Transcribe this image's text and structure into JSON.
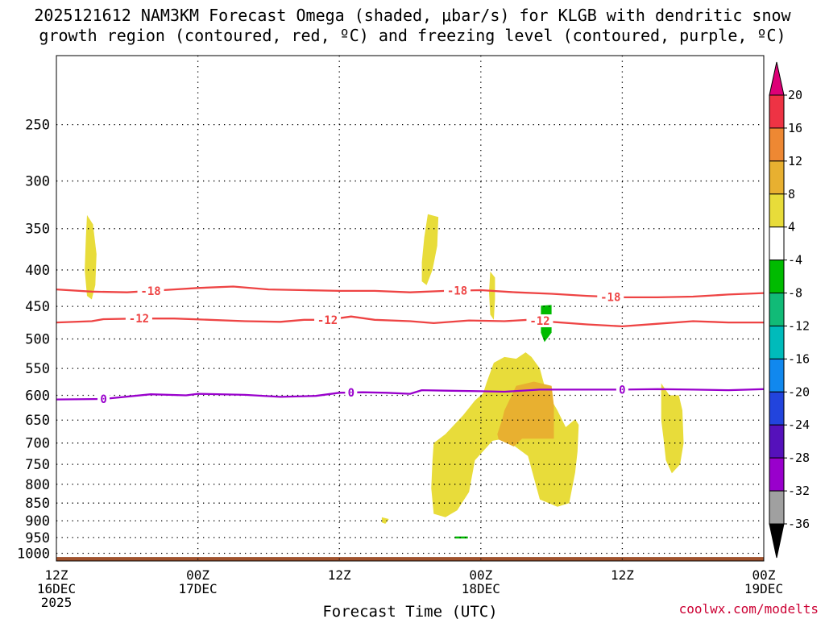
{
  "chart_data": {
    "type": "heatmap",
    "title_line1": "2025121612 NAM3KM Forecast Omega (shaded, μbar/s) for KLGB with dendritic snow",
    "title_line2": "growth region (contoured, red, ºC) and freezing level (contoured, purple, ºC)",
    "xlabel": "Forecast Time (UTC)",
    "credit": "coolwx.com/modelts",
    "x_range_hours": [
      0,
      60
    ],
    "y_range_hpa": [
      1025,
      200
    ],
    "y_scale": "log-pressure",
    "x_ticks": [
      {
        "hour": 0,
        "line1": "12Z",
        "line2": "16DEC",
        "line3": "2025"
      },
      {
        "hour": 12,
        "line1": "00Z",
        "line2": "17DEC",
        "line3": ""
      },
      {
        "hour": 24,
        "line1": "12Z",
        "line2": "",
        "line3": ""
      },
      {
        "hour": 36,
        "line1": "00Z",
        "line2": "18DEC",
        "line3": ""
      },
      {
        "hour": 48,
        "line1": "12Z",
        "line2": "",
        "line3": ""
      },
      {
        "hour": 60,
        "line1": "00Z",
        "line2": "19DEC",
        "line3": ""
      }
    ],
    "y_ticks": [
      1000,
      950,
      900,
      850,
      800,
      750,
      700,
      650,
      600,
      550,
      500,
      450,
      400,
      350,
      300,
      250
    ],
    "colorbar": {
      "labels": [
        20,
        16,
        12,
        8,
        4,
        -4,
        -8,
        -12,
        -16,
        -20,
        -24,
        -28,
        -32,
        -36
      ],
      "colors": [
        "#dd0077",
        "#ee3344",
        "#ee8833",
        "#e8b030",
        "#e8dc3a",
        "#ffffff",
        "#00bb00",
        "#11bb77",
        "#00bbbb",
        "#1188ee",
        "#2244dd",
        "#5511bb",
        "#9900cc",
        "#a0a0a0",
        "#000000"
      ]
    },
    "contours": [
      {
        "label": "-18",
        "color": "#ee4444",
        "label_hours": [
          8,
          34,
          47
        ],
        "points": [
          [
            0,
            426
          ],
          [
            3,
            429
          ],
          [
            6,
            430
          ],
          [
            9,
            427
          ],
          [
            12,
            424
          ],
          [
            15,
            422
          ],
          [
            18,
            426
          ],
          [
            21,
            427
          ],
          [
            24,
            428
          ],
          [
            27,
            428
          ],
          [
            30,
            430
          ],
          [
            33,
            428
          ],
          [
            36,
            427
          ],
          [
            39,
            430
          ],
          [
            42,
            432
          ],
          [
            45,
            435
          ],
          [
            48,
            437
          ],
          [
            51,
            437
          ],
          [
            54,
            436
          ],
          [
            57,
            433
          ],
          [
            60,
            431
          ]
        ]
      },
      {
        "label": "-12",
        "color": "#ee4444",
        "label_hours": [
          7,
          23,
          41
        ],
        "points": [
          [
            0,
            474
          ],
          [
            3,
            472
          ],
          [
            4,
            469
          ],
          [
            7,
            468
          ],
          [
            10,
            468
          ],
          [
            13,
            470
          ],
          [
            16,
            472
          ],
          [
            19,
            473
          ],
          [
            21,
            470
          ],
          [
            23,
            470
          ],
          [
            25,
            465
          ],
          [
            27,
            470
          ],
          [
            30,
            472
          ],
          [
            32,
            475
          ],
          [
            35,
            471
          ],
          [
            38,
            472
          ],
          [
            40,
            470
          ],
          [
            42,
            473
          ],
          [
            45,
            477
          ],
          [
            48,
            480
          ],
          [
            51,
            476
          ],
          [
            54,
            472
          ],
          [
            57,
            474
          ],
          [
            60,
            474
          ]
        ]
      },
      {
        "label": "0",
        "color": "#9900cc",
        "label_hours": [
          4,
          25,
          48
        ],
        "points": [
          [
            0,
            608
          ],
          [
            4,
            607
          ],
          [
            8,
            598
          ],
          [
            11,
            600
          ],
          [
            12,
            597
          ],
          [
            16,
            599
          ],
          [
            19,
            603
          ],
          [
            22,
            601
          ],
          [
            24,
            595
          ],
          [
            26,
            594
          ],
          [
            28,
            595
          ],
          [
            30,
            597
          ],
          [
            31,
            590
          ],
          [
            33,
            591
          ],
          [
            36,
            592
          ],
          [
            38,
            593
          ],
          [
            41,
            589
          ],
          [
            43,
            589
          ],
          [
            45,
            589
          ],
          [
            48,
            589
          ],
          [
            51,
            588
          ],
          [
            54,
            589
          ],
          [
            57,
            590
          ],
          [
            60,
            588
          ]
        ]
      }
    ],
    "omega_regions": [
      {
        "value_range": [
          4,
          8
        ],
        "color": "#e8dc3a",
        "points": [
          [
            2.6,
            335
          ],
          [
            3.1,
            345
          ],
          [
            3.4,
            380
          ],
          [
            3.3,
            420
          ],
          [
            3.0,
            440
          ],
          [
            2.6,
            435
          ],
          [
            2.4,
            400
          ],
          [
            2.5,
            360
          ]
        ]
      },
      {
        "value_range": [
          4,
          8
        ],
        "color": "#e8dc3a",
        "points": [
          [
            31.5,
            334
          ],
          [
            32.4,
            337
          ],
          [
            32.3,
            370
          ],
          [
            31.9,
            400
          ],
          [
            31.4,
            420
          ],
          [
            31.0,
            415
          ],
          [
            31.0,
            390
          ],
          [
            31.2,
            360
          ]
        ]
      },
      {
        "value_range": [
          4,
          8
        ],
        "color": "#e8dc3a",
        "points": [
          [
            36.8,
            402
          ],
          [
            37.2,
            410
          ],
          [
            37.2,
            440
          ],
          [
            37.1,
            470
          ],
          [
            36.8,
            462
          ],
          [
            36.7,
            430
          ]
        ]
      },
      {
        "value_range": [
          -8,
          -4
        ],
        "color": "#00bb00",
        "points": [
          [
            41.1,
            449
          ],
          [
            42.0,
            448
          ],
          [
            42.0,
            490
          ],
          [
            41.4,
            505
          ],
          [
            41.1,
            490
          ]
        ]
      },
      {
        "value_range": [
          4,
          8
        ],
        "color": "#e8dc3a",
        "points": [
          [
            36.2,
            596
          ],
          [
            36.5,
            575
          ],
          [
            37.1,
            540
          ],
          [
            38.0,
            530
          ],
          [
            39.0,
            533
          ],
          [
            39.8,
            522
          ],
          [
            40.3,
            530
          ],
          [
            41.0,
            550
          ],
          [
            41.5,
            590
          ],
          [
            42.5,
            630
          ],
          [
            43.2,
            665
          ],
          [
            44.0,
            648
          ],
          [
            44.3,
            660
          ],
          [
            44.2,
            720
          ],
          [
            44.0,
            770
          ],
          [
            43.5,
            850
          ],
          [
            42.5,
            860
          ],
          [
            41.0,
            840
          ],
          [
            40.0,
            730
          ],
          [
            38.0,
            690
          ],
          [
            37.0,
            695
          ],
          [
            35.5,
            740
          ],
          [
            35.0,
            820
          ],
          [
            34.0,
            870
          ],
          [
            33.0,
            890
          ],
          [
            32.0,
            880
          ],
          [
            31.8,
            810
          ],
          [
            31.9,
            740
          ],
          [
            32.0,
            700
          ],
          [
            33.0,
            680
          ],
          [
            34.5,
            640
          ],
          [
            35.5,
            610
          ]
        ]
      },
      {
        "value_range": [
          8,
          12
        ],
        "color": "#e8b030",
        "points": [
          [
            38.0,
            630
          ],
          [
            39.0,
            582
          ],
          [
            40.5,
            574
          ],
          [
            42.0,
            582
          ],
          [
            42.2,
            620
          ],
          [
            42.2,
            690
          ],
          [
            41.0,
            690
          ],
          [
            39.5,
            690
          ],
          [
            38.8,
            708
          ],
          [
            37.5,
            692
          ],
          [
            37.4,
            680
          ],
          [
            37.8,
            650
          ]
        ]
      },
      {
        "value_range": [
          4,
          8
        ],
        "color": "#e8dc3a",
        "points": [
          [
            51.3,
            577
          ],
          [
            52.0,
            600
          ],
          [
            52.8,
            600
          ],
          [
            53.1,
            630
          ],
          [
            53.2,
            700
          ],
          [
            52.9,
            750
          ],
          [
            52.2,
            772
          ],
          [
            51.7,
            740
          ],
          [
            51.5,
            690
          ],
          [
            51.3,
            650
          ],
          [
            51.3,
            600
          ]
        ]
      },
      {
        "value_range": [
          4,
          8
        ],
        "color": "#e8dc3a",
        "points": [
          [
            27.6,
            890
          ],
          [
            28.2,
            895
          ],
          [
            27.9,
            909
          ],
          [
            27.6,
            905
          ]
        ]
      },
      {
        "value_range": [
          -8,
          -4
        ],
        "color": "#00bb00",
        "points": [
          [
            33.8,
            947
          ],
          [
            34.9,
            947
          ],
          [
            34.9,
            953
          ],
          [
            33.8,
            953
          ]
        ]
      }
    ],
    "terrain": {
      "color": "#a0522d",
      "top_hpa": 1012
    }
  }
}
